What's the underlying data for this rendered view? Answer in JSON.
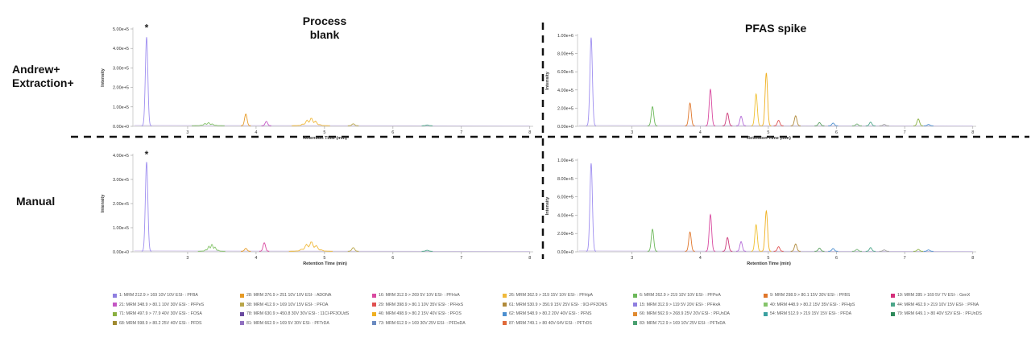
{
  "labels": {
    "row1": "Andrew+\nExtraction+",
    "row2": "Manual",
    "col1": "Process\nblank",
    "col2": "PFAS spike"
  },
  "chart_data": [
    {
      "type": "line",
      "panel": "row1-process-blank",
      "xlabel": "Retention Time (min)",
      "ylabel": "Intensity",
      "xlim": [
        2.2,
        8.05
      ],
      "ylim": [
        0,
        500000
      ],
      "xticks": [
        3,
        4,
        5,
        6,
        7,
        8
      ],
      "yticks": [
        0,
        100000,
        200000,
        300000,
        400000,
        500000
      ],
      "ytick_labels": [
        "0.00e+0",
        "1.00e+5",
        "2.00e+5",
        "3.00e+5",
        "4.00e+5",
        "5.00e+5"
      ],
      "annotations": [
        {
          "text": "*",
          "x": 2.4,
          "y": 490000
        }
      ],
      "peaks": [
        {
          "x": 2.4,
          "y": 455000,
          "w": 0.018,
          "color": "#9f8ff0"
        },
        {
          "x": 3.3,
          "y": 12000,
          "w": 0.06,
          "color": "#85c46a"
        },
        {
          "x": 3.85,
          "y": 60000,
          "w": 0.018,
          "color": "#e69a25"
        },
        {
          "x": 4.15,
          "y": 22000,
          "w": 0.018,
          "color": "#c456c4"
        },
        {
          "x": 4.8,
          "y": 30000,
          "w": 0.07,
          "color": "#f0b93a"
        },
        {
          "x": 5.42,
          "y": 10000,
          "w": 0.02,
          "color": "#b9a64a"
        },
        {
          "x": 6.5,
          "y": 4000,
          "w": 0.02,
          "color": "#4ca68a"
        }
      ]
    },
    {
      "type": "line",
      "panel": "row1-pfas-spike",
      "xlabel": "Retention Time (min)",
      "ylabel": "Intensity",
      "xlim": [
        2.2,
        8.05
      ],
      "ylim": [
        0,
        1000000
      ],
      "xticks": [
        3,
        4,
        5,
        6,
        7,
        8
      ],
      "yticks": [
        0,
        200000,
        400000,
        600000,
        800000,
        1000000
      ],
      "ytick_labels": [
        "0.00e+0",
        "2.00e+5",
        "4.00e+5",
        "6.00e+5",
        "8.00e+5",
        "1.00e+6"
      ],
      "peaks": [
        {
          "x": 2.4,
          "y": 970000,
          "w": 0.018,
          "color": "#9f8ff0"
        },
        {
          "x": 3.3,
          "y": 210000,
          "w": 0.018,
          "color": "#6cb85a"
        },
        {
          "x": 3.85,
          "y": 250000,
          "w": 0.018,
          "color": "#e0762a"
        },
        {
          "x": 4.15,
          "y": 400000,
          "w": 0.018,
          "color": "#d94aa0"
        },
        {
          "x": 4.4,
          "y": 140000,
          "w": 0.018,
          "color": "#cc3a7a"
        },
        {
          "x": 4.6,
          "y": 105000,
          "w": 0.018,
          "color": "#b46ad8"
        },
        {
          "x": 4.82,
          "y": 350000,
          "w": 0.018,
          "color": "#f0c030"
        },
        {
          "x": 4.97,
          "y": 580000,
          "w": 0.018,
          "color": "#f0b020"
        },
        {
          "x": 5.15,
          "y": 60000,
          "w": 0.018,
          "color": "#e05050"
        },
        {
          "x": 5.4,
          "y": 110000,
          "w": 0.018,
          "color": "#b08a3a"
        },
        {
          "x": 5.75,
          "y": 35000,
          "w": 0.018,
          "color": "#5aa060"
        },
        {
          "x": 5.95,
          "y": 30000,
          "w": 0.018,
          "color": "#4c8fd0"
        },
        {
          "x": 6.3,
          "y": 20000,
          "w": 0.018,
          "color": "#6fb070"
        },
        {
          "x": 6.5,
          "y": 40000,
          "w": 0.018,
          "color": "#4ca68a"
        },
        {
          "x": 6.7,
          "y": 15000,
          "w": 0.018,
          "color": "#9a9a9a"
        },
        {
          "x": 7.2,
          "y": 75000,
          "w": 0.018,
          "color": "#8ab040"
        },
        {
          "x": 7.35,
          "y": 15000,
          "w": 0.018,
          "color": "#4c8fd0"
        }
      ]
    },
    {
      "type": "line",
      "panel": "row2-process-blank",
      "xlabel": "Retention Time (min)",
      "ylabel": "Intensity",
      "xlim": [
        2.2,
        8.05
      ],
      "ylim": [
        0,
        400000
      ],
      "xticks": [
        3,
        4,
        5,
        6,
        7,
        8
      ],
      "yticks": [
        0,
        100000,
        200000,
        300000,
        400000
      ],
      "ytick_labels": [
        "0.00e+0",
        "1.00e+5",
        "2.00e+5",
        "3.00e+5",
        "4.00e+5"
      ],
      "annotations": [
        {
          "text": "*",
          "x": 2.4,
          "y": 390000
        }
      ],
      "peaks": [
        {
          "x": 2.4,
          "y": 370000,
          "w": 0.018,
          "color": "#9f8ff0"
        },
        {
          "x": 3.35,
          "y": 22000,
          "w": 0.05,
          "color": "#85c46a"
        },
        {
          "x": 3.85,
          "y": 12000,
          "w": 0.018,
          "color": "#e69a25"
        },
        {
          "x": 4.12,
          "y": 35000,
          "w": 0.018,
          "color": "#d94aa0"
        },
        {
          "x": 4.8,
          "y": 30000,
          "w": 0.08,
          "color": "#f0b93a"
        },
        {
          "x": 5.42,
          "y": 15000,
          "w": 0.02,
          "color": "#b9a64a"
        },
        {
          "x": 6.5,
          "y": 4000,
          "w": 0.02,
          "color": "#4ca68a"
        }
      ]
    },
    {
      "type": "line",
      "panel": "row2-pfas-spike",
      "xlabel": "Retention Time (min)",
      "ylabel": "Intensity",
      "xlim": [
        2.2,
        8.05
      ],
      "ylim": [
        0,
        1000000
      ],
      "xticks": [
        3,
        4,
        5,
        6,
        7,
        8
      ],
      "yticks": [
        0,
        200000,
        400000,
        600000,
        800000,
        1000000
      ],
      "ytick_labels": [
        "0.00e+0",
        "2.00e+5",
        "4.00e+5",
        "6.00e+5",
        "8.00e+5",
        "1.00e+6"
      ],
      "peaks": [
        {
          "x": 2.4,
          "y": 960000,
          "w": 0.018,
          "color": "#9f8ff0"
        },
        {
          "x": 3.3,
          "y": 240000,
          "w": 0.018,
          "color": "#6cb85a"
        },
        {
          "x": 3.85,
          "y": 210000,
          "w": 0.018,
          "color": "#e0762a"
        },
        {
          "x": 4.15,
          "y": 400000,
          "w": 0.018,
          "color": "#d94aa0"
        },
        {
          "x": 4.4,
          "y": 150000,
          "w": 0.018,
          "color": "#cc3a7a"
        },
        {
          "x": 4.6,
          "y": 105000,
          "w": 0.018,
          "color": "#b46ad8"
        },
        {
          "x": 4.82,
          "y": 290000,
          "w": 0.018,
          "color": "#f0c030"
        },
        {
          "x": 4.97,
          "y": 440000,
          "w": 0.018,
          "color": "#f0b020"
        },
        {
          "x": 5.15,
          "y": 50000,
          "w": 0.018,
          "color": "#e05050"
        },
        {
          "x": 5.4,
          "y": 80000,
          "w": 0.018,
          "color": "#b08a3a"
        },
        {
          "x": 5.75,
          "y": 35000,
          "w": 0.018,
          "color": "#5aa060"
        },
        {
          "x": 5.95,
          "y": 30000,
          "w": 0.018,
          "color": "#4c8fd0"
        },
        {
          "x": 6.3,
          "y": 20000,
          "w": 0.018,
          "color": "#6fb070"
        },
        {
          "x": 6.5,
          "y": 40000,
          "w": 0.018,
          "color": "#4ca68a"
        },
        {
          "x": 6.7,
          "y": 15000,
          "w": 0.018,
          "color": "#9a9a9a"
        },
        {
          "x": 7.2,
          "y": 20000,
          "w": 0.018,
          "color": "#8ab040"
        },
        {
          "x": 7.35,
          "y": 15000,
          "w": 0.018,
          "color": "#4c8fd0"
        }
      ]
    }
  ],
  "legend": [
    {
      "text": "1: MRM 212.9 > 169 10V 10V ESI- : PFBA",
      "color": "#8f7fe0"
    },
    {
      "text": "28: MRM 376.9 > 251 10V 10V ESI- : ADONA",
      "color": "#e69a25"
    },
    {
      "text": "16: MRM 312.9 > 269 5V 10V ESI- : PFHxA",
      "color": "#d94aa0"
    },
    {
      "text": "26: MRM 362.9 > 319 15V 10V ESI- : PFHpA",
      "color": "#f0b93a"
    },
    {
      "text": "6: MRM 262.9 > 219 10V 10V ESI- : PFPeA",
      "color": "#6cb85a"
    },
    {
      "text": "9: MRM 298.9 > 80.1 15V 30V ESI- : PFBS",
      "color": "#e0762a"
    },
    {
      "text": "19: MRM 285 > 169 5V 7V ESI- : GenX",
      "color": "#d42e7a"
    },
    {
      "text": "21: MRM 348.9 > 80.1 10V 30V ESI- : PFPeS",
      "color": "#c456c4"
    },
    {
      "text": "38: MRM 412.9 > 169 10V 15V ESI- : PFOA",
      "color": "#b9a64a"
    },
    {
      "text": "29: MRM 398.9 > 80.1 10V 35V ESI- : PFHxS",
      "color": "#e05050"
    },
    {
      "text": "61: MRM 530.9 > 350.9 15V 25V ESI- : 9Cl-PF3ONS",
      "color": "#b08a3a"
    },
    {
      "text": "15: MRM 312.9 > 119 5V 20V ESI- : PFHxA",
      "color": "#8f7fe0"
    },
    {
      "text": "40: MRM 448.9 > 80.2 15V 35V ESI- : PFHpS",
      "color": "#85c46a"
    },
    {
      "text": "44: MRM 462.9 > 219 10V 15V ESI- : PFNA",
      "color": "#4ca68a"
    },
    {
      "text": "71: MRM 497.9 > 77.9 40V 30V ESI- : FOSA",
      "color": "#8ab040"
    },
    {
      "text": "78: MRM 630.9 > 450.8 30V 30V ESI- : 11Cl-PF3OUdS",
      "color": "#6a4aa0"
    },
    {
      "text": "46: MRM 498.9 > 80.2 15V 40V ESI- : PFOS",
      "color": "#f0b020"
    },
    {
      "text": "62: MRM 548.9 > 80.2 20V 40V ESI- : PFNS",
      "color": "#4c8fd0"
    },
    {
      "text": "66: MRM 562.9 > 268.9 25V 20V ESI- : PFUnDA",
      "color": "#e08a30"
    },
    {
      "text": "54: MRM 512.9 > 219 15V 15V ESI- : PFDA",
      "color": "#3aa0a0"
    },
    {
      "text": "79: MRM 649.1 > 80 40V 52V ESI- : PFUnDS",
      "color": "#2e8a5a"
    },
    {
      "text": "68: MRM 598.9 > 80.2 25V 40V ESI- : PFDS",
      "color": "#a08a30"
    },
    {
      "text": "81: MRM 662.9 > 169 5V 30V ESI- : PFTrDA",
      "color": "#9070c0"
    },
    {
      "text": "73: MRM 612.9 > 169 30V 25V ESI- : PFDoDA",
      "color": "#6a8ac0"
    },
    {
      "text": "87: MRM 749.1 > 80 40V 64V ESI- : PFTrDS",
      "color": "#e06a3a"
    },
    {
      "text": "83: MRM 712.9 > 169 10V 25V ESI- : PFTeDA",
      "color": "#4aa070"
    }
  ]
}
